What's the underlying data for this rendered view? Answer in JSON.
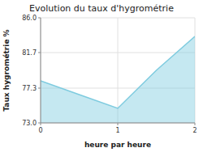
{
  "chart_data": {
    "type": "area",
    "title": "Evolution du taux d'hygrométrie",
    "xlabel": "heure par heure",
    "ylabel": "Taux hygrométrie %",
    "x": [
      0,
      0.5,
      1,
      1.5,
      2
    ],
    "values": [
      78.2,
      76.5,
      74.8,
      79.5,
      83.7
    ],
    "color": "#7ecbdf",
    "xlim": [
      0,
      2
    ],
    "ylim": [
      73.0,
      86.0
    ],
    "xticks": [
      0,
      1,
      2
    ],
    "yticks": [
      {
        "value": 73.0,
        "label": "73.0"
      },
      77.3,
      81.7,
      {
        "value": 86.0,
        "label": "86.0"
      }
    ],
    "grid": true
  }
}
